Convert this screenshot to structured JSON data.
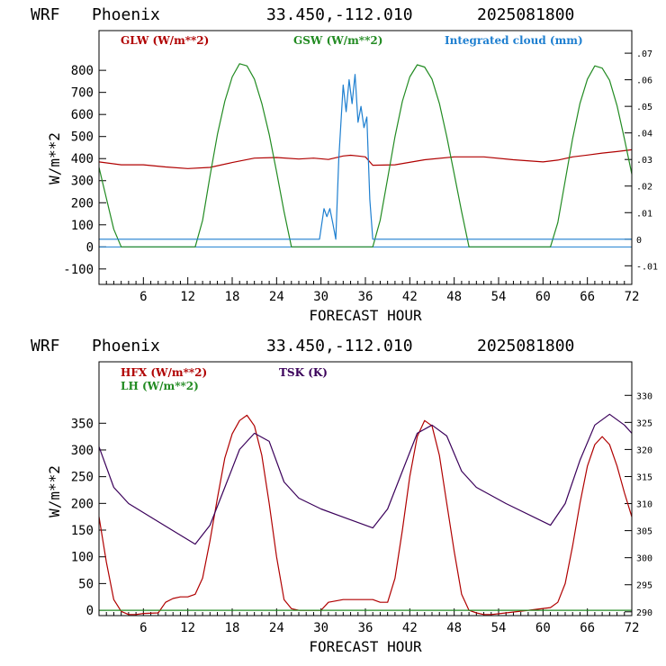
{
  "charts": [
    {
      "header": {
        "model": "WRF",
        "location": "Phoenix",
        "coords": "33.450,-112.010",
        "run": "2025081800"
      },
      "xlabel": "FORECAST HOUR",
      "ylabel": "W/m**2",
      "legend": [
        {
          "text": "GLW (W/m**2)",
          "color": "#b00000"
        },
        {
          "text": "GSW (W/m**2)",
          "color": "#228b22"
        },
        {
          "text": "Integrated cloud (mm)",
          "color": "#1e7fd0"
        }
      ],
      "x_ticks": [
        "6",
        "12",
        "18",
        "24",
        "30",
        "36",
        "42",
        "48",
        "54",
        "60",
        "66",
        "72"
      ],
      "y_ticks": [
        "-100",
        "0",
        "100",
        "200",
        "300",
        "400",
        "500",
        "600",
        "700",
        "800"
      ],
      "y2_ticks": [
        "-.01",
        "0",
        ".01",
        ".02",
        ".03",
        ".04",
        ".05",
        ".06",
        ".07"
      ]
    },
    {
      "header": {
        "model": "WRF",
        "location": "Phoenix",
        "coords": "33.450,-112.010",
        "run": "2025081800"
      },
      "xlabel": "FORECAST HOUR",
      "ylabel": "W/m**2",
      "legend": [
        {
          "text": "HFX (W/m**2)",
          "color": "#b00000"
        },
        {
          "text": "LH  (W/m**2)",
          "color": "#228b22"
        },
        {
          "text": "TSK (K)",
          "color": "#3a005a"
        }
      ],
      "x_ticks": [
        "6",
        "12",
        "18",
        "24",
        "30",
        "36",
        "42",
        "48",
        "54",
        "60",
        "66",
        "72"
      ],
      "y_ticks": [
        "0",
        "50",
        "100",
        "150",
        "200",
        "250",
        "300",
        "350"
      ],
      "y2_ticks": [
        "290",
        "295",
        "300",
        "305",
        "310",
        "315",
        "320",
        "325",
        "330"
      ]
    }
  ],
  "chart_data": [
    {
      "type": "line",
      "x_range": [
        0,
        72
      ],
      "ylim": [
        -170,
        980
      ],
      "y2lim": [
        -0.017,
        0.0785
      ],
      "y2_scale": "right axis for Integrated cloud",
      "zero_line": true,
      "series": [
        {
          "name": "GLW (W/m**2)",
          "color": "#b00000",
          "axis": "left",
          "x": [
            0,
            3,
            6,
            9,
            12,
            15,
            18,
            21,
            24,
            27,
            29,
            31,
            33,
            34,
            35,
            36,
            37,
            40,
            44,
            48,
            52,
            56,
            60,
            62,
            64,
            66,
            68,
            70,
            72
          ],
          "y": [
            385,
            372,
            372,
            362,
            355,
            360,
            382,
            402,
            405,
            398,
            402,
            396,
            412,
            415,
            412,
            408,
            370,
            372,
            395,
            408,
            408,
            395,
            385,
            393,
            408,
            416,
            425,
            432,
            440
          ]
        },
        {
          "name": "GSW (W/m**2)",
          "color": "#228b22",
          "axis": "left",
          "x": [
            0,
            1,
            2,
            3,
            13,
            14,
            15,
            16,
            17,
            18,
            19,
            20,
            21,
            22,
            23,
            24,
            25,
            26,
            37,
            38,
            39,
            40,
            41,
            42,
            43,
            44,
            45,
            46,
            47,
            48,
            49,
            50,
            61,
            62,
            63,
            64,
            65,
            66,
            67,
            68,
            69,
            70,
            71,
            72
          ],
          "y": [
            360,
            220,
            80,
            0,
            0,
            120,
            320,
            510,
            660,
            770,
            830,
            820,
            760,
            650,
            510,
            340,
            160,
            0,
            0,
            120,
            310,
            500,
            660,
            770,
            825,
            815,
            760,
            650,
            500,
            330,
            160,
            0,
            0,
            110,
            300,
            490,
            650,
            760,
            820,
            810,
            755,
            640,
            490,
            330
          ]
        },
        {
          "name": "Integrated cloud (mm)",
          "color": "#1e7fd0",
          "axis": "right",
          "x": [
            0,
            29.8,
            30.4,
            30.8,
            31.2,
            31.6,
            32,
            32.4,
            33,
            33.4,
            33.8,
            34.2,
            34.6,
            35,
            35.4,
            35.8,
            36.2,
            36.6,
            37,
            72
          ],
          "y": [
            0,
            0,
            0.0115,
            0.0085,
            0.0115,
            0.006,
            0,
            0.03,
            0.058,
            0.048,
            0.06,
            0.051,
            0.062,
            0.044,
            0.05,
            0.042,
            0.046,
            0.015,
            0,
            0
          ]
        }
      ]
    },
    {
      "type": "line",
      "x_range": [
        0,
        72
      ],
      "ylim": [
        -10,
        465
      ],
      "y2lim": [
        289.3,
        336.2
      ],
      "y2_scale": "right axis for TSK",
      "series": [
        {
          "name": "HFX (W/m**2)",
          "color": "#b00000",
          "axis": "left",
          "x": [
            0,
            1,
            2,
            3,
            4,
            5,
            6,
            8,
            9,
            10,
            11,
            12,
            13,
            14,
            15,
            16,
            17,
            18,
            19,
            20,
            21,
            22,
            23,
            24,
            25,
            26,
            27,
            30,
            31,
            33,
            35,
            37,
            38,
            39,
            40,
            41,
            42,
            43,
            44,
            45,
            46,
            47,
            48,
            49,
            50,
            51,
            52,
            53,
            55,
            58,
            61,
            62,
            63,
            64,
            65,
            66,
            67,
            68,
            69,
            70,
            71,
            72
          ],
          "y": [
            175,
            90,
            20,
            -2,
            -8,
            -8,
            -6,
            -5,
            15,
            22,
            25,
            25,
            30,
            60,
            130,
            210,
            285,
            330,
            355,
            365,
            345,
            290,
            200,
            100,
            20,
            3,
            0,
            0,
            15,
            20,
            20,
            20,
            15,
            15,
            60,
            150,
            250,
            325,
            355,
            345,
            290,
            200,
            110,
            30,
            0,
            -5,
            -8,
            -8,
            -5,
            0,
            5,
            15,
            50,
            120,
            200,
            270,
            310,
            325,
            310,
            270,
            220,
            175
          ]
        },
        {
          "name": "LH  (W/m**2)",
          "color": "#228b22",
          "axis": "left",
          "x": [
            0,
            72
          ],
          "y": [
            0,
            0
          ]
        },
        {
          "name": "TSK (K)",
          "color": "#3a005a",
          "axis": "right",
          "x": [
            0,
            2,
            4,
            7,
            10,
            13,
            15,
            17,
            19,
            21,
            23,
            25,
            27,
            30,
            33,
            37,
            39,
            41,
            43,
            45,
            47,
            49,
            51,
            55,
            61,
            63,
            65,
            67,
            69,
            71,
            72
          ],
          "y": [
            320.5,
            313,
            310,
            307.5,
            305,
            302.5,
            306,
            313,
            320,
            323,
            321.5,
            314,
            311,
            309,
            307.5,
            305.5,
            309,
            316,
            323,
            324.5,
            322.5,
            316,
            313,
            310,
            306,
            310,
            318,
            324.5,
            326.5,
            324.5,
            323
          ]
        }
      ]
    }
  ]
}
